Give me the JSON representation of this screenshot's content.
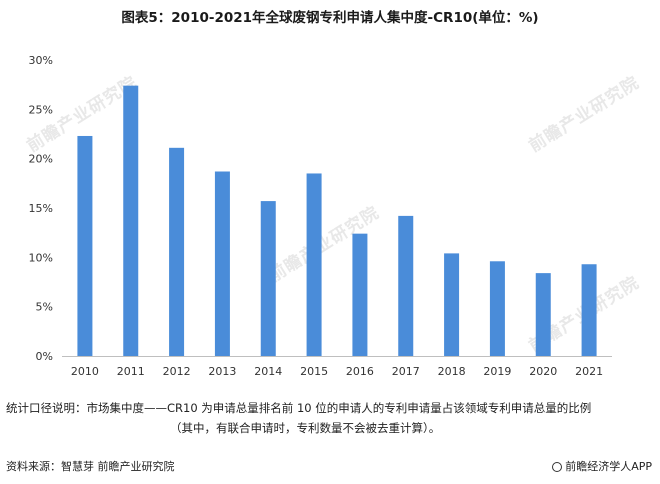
{
  "title": "图表5：2010-2021年全球废钢专利申请人集中度-CR10(单位：%)",
  "chart_data": {
    "type": "bar",
    "title": "图表5：2010-2021年全球废钢专利申请人集中度-CR10(单位：%)",
    "categories": [
      "2010",
      "2011",
      "2012",
      "2013",
      "2014",
      "2015",
      "2016",
      "2017",
      "2018",
      "2019",
      "2020",
      "2021"
    ],
    "values": [
      22.3,
      27.4,
      21.1,
      18.7,
      15.7,
      18.5,
      12.4,
      14.2,
      10.4,
      9.6,
      8.4,
      9.3
    ],
    "ylim": [
      0,
      30
    ],
    "yticks": [
      "0%",
      "5%",
      "10%",
      "15%",
      "20%",
      "25%",
      "30%"
    ],
    "grid": false,
    "bar_color": "#4a8cd9"
  },
  "note": {
    "line1": "统计口径说明：市场集中度——CR10 为申请总量排名前 10 位的申请人的专利申请量占该领域专利申请总量的比例",
    "line2": "（其中，有联合申请时，专利数量不会被去重计算）。"
  },
  "footer": {
    "source": "资料来源：智慧芽 前瞻产业研究院",
    "brand": "前瞻经济学人APP"
  },
  "watermark": "前瞻产业研究院"
}
